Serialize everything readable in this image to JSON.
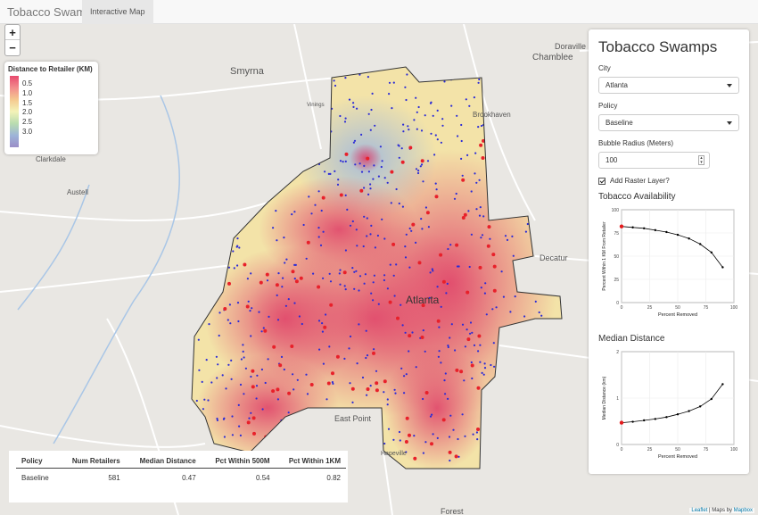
{
  "navbar": {
    "brand": "Tobacco Swamps",
    "tab_map": "Interactive Map"
  },
  "map": {
    "zoom_in": "+",
    "zoom_out": "−",
    "place_labels": [
      "Smyrna",
      "Chamblee",
      "Doraville",
      "Clarkdale",
      "Austell",
      "Decatur",
      "Atlanta",
      "East Point",
      "Hapeville",
      "Forest",
      "Vinings",
      "Brookhaven"
    ],
    "legend": {
      "title": "Distance to Retailer (KM)",
      "ticks": [
        "0.5",
        "1.0",
        "1.5",
        "2.0",
        "2.5",
        "3.0"
      ]
    }
  },
  "summary_table": {
    "headers": [
      "Policy",
      "Num Retailers",
      "Median Distance",
      "Pct Within 500M",
      "Pct Within 1KM"
    ],
    "row": [
      "Baseline",
      "581",
      "0.47",
      "0.54",
      "0.82"
    ]
  },
  "panel": {
    "title": "Tobacco Swamps",
    "city_label": "City",
    "city_value": "Atlanta",
    "policy_label": "Policy",
    "policy_value": "Baseline",
    "radius_label": "Bubble Radius (Meters)",
    "radius_value": "100",
    "raster_label": "Add Raster Layer?",
    "availability_title": "Tobacco Availability",
    "median_title": "Median Distance"
  },
  "attribution": {
    "leaflet": "Leaflet",
    "sep": " | Maps by ",
    "mapbox": "Mapbox"
  },
  "chart_data": [
    {
      "type": "line",
      "title": "Tobacco Availability",
      "xlabel": "Percent Removed",
      "ylabel": "Percent Within 1 KM From Retailer",
      "x": [
        0,
        10,
        20,
        30,
        40,
        50,
        60,
        70,
        80,
        90
      ],
      "y": [
        82,
        81,
        80,
        78,
        76,
        73,
        69,
        63,
        54,
        38
      ],
      "xlim": [
        0,
        100
      ],
      "ylim": [
        0,
        100
      ],
      "xticks": [
        "0",
        "25",
        "50",
        "75",
        "100"
      ],
      "yticks": [
        "0",
        "25",
        "50",
        "75",
        "100"
      ],
      "highlight_color": "#e41a1c",
      "line_color": "#000000"
    },
    {
      "type": "line",
      "title": "Median Distance",
      "xlabel": "Percent Removed",
      "ylabel": "Median Distance (km)",
      "x": [
        0,
        10,
        20,
        30,
        40,
        50,
        60,
        70,
        80,
        90
      ],
      "y": [
        0.47,
        0.49,
        0.52,
        0.55,
        0.59,
        0.65,
        0.72,
        0.82,
        0.98,
        1.3
      ],
      "xlim": [
        0,
        100
      ],
      "ylim": [
        0,
        2
      ],
      "xticks": [
        "0",
        "25",
        "50",
        "75",
        "100"
      ],
      "yticks": [
        "0",
        "1",
        "2"
      ],
      "highlight_color": "#e41a1c",
      "line_color": "#000000"
    }
  ]
}
